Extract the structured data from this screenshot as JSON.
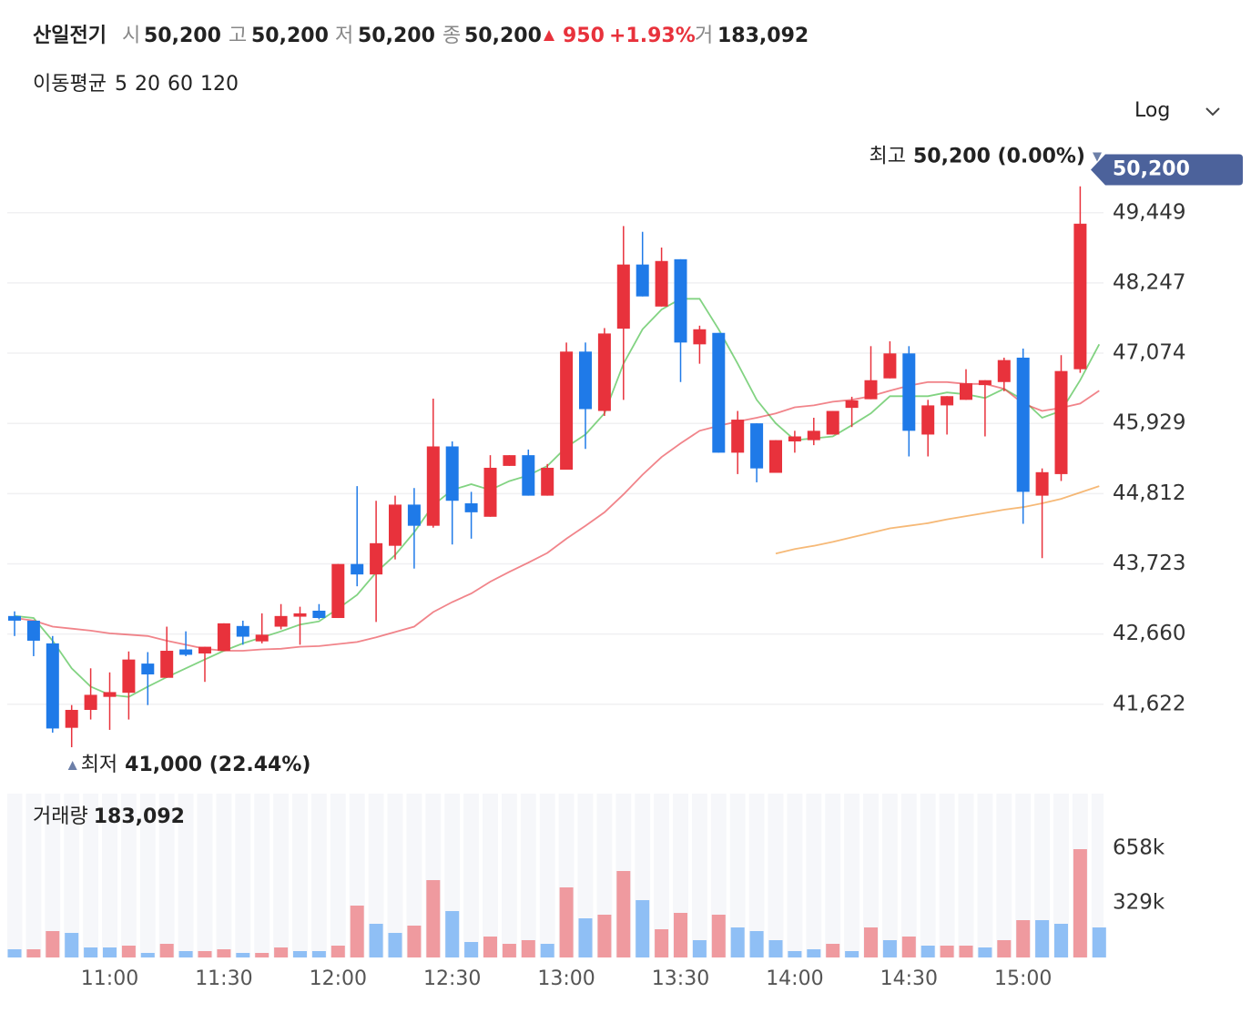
{
  "header": {
    "name": "산일전기",
    "open_label": "시",
    "open": "50,200",
    "high_label": "고",
    "high": "50,200",
    "low_label": "저",
    "low": "50,200",
    "close_label": "종",
    "close": "50,200",
    "change": "950",
    "change_pct": "+1.93%",
    "volume_label": "거",
    "volume": "183,092"
  },
  "ma_legend_label": "이동평균",
  "scale_toggle": "Log",
  "chart_data": [
    {
      "type": "candlestick",
      "log_scale": true,
      "grid": true,
      "up_color": "#e8323c",
      "down_color": "#1f7ae8",
      "open": [
        42930,
        42860,
        42520,
        41280,
        41540,
        41730,
        41790,
        42220,
        42010,
        42430,
        42370,
        42410,
        42780,
        42550,
        42770,
        42920,
        43010,
        42900,
        43720,
        43560,
        44000,
        44640,
        44310,
        45560,
        44660,
        44450,
        45250,
        45420,
        44780,
        45190,
        47100,
        46130,
        47480,
        48560,
        47850,
        48650,
        47220,
        47410,
        45460,
        45930,
        45140,
        45640,
        45660,
        45750,
        46180,
        46320,
        46660,
        47070,
        45750,
        46220,
        46310,
        46550,
        46600,
        47000,
        44780,
        45120,
        46810,
        50200
      ],
      "high": [
        43000,
        42860,
        42630,
        41610,
        42150,
        42090,
        42400,
        42390,
        42770,
        42700,
        42470,
        42820,
        42860,
        42970,
        43110,
        43070,
        43110,
        43720,
        44930,
        44700,
        44780,
        44900,
        46330,
        45640,
        44840,
        45420,
        45420,
        45510,
        45280,
        47250,
        47250,
        47490,
        49220,
        49120,
        48850,
        48650,
        47530,
        47410,
        46130,
        45930,
        45660,
        45810,
        46020,
        46130,
        46360,
        47190,
        47270,
        47190,
        46310,
        46370,
        46810,
        46630,
        47000,
        47150,
        45210,
        47040,
        49910,
        50200
      ],
      "low": [
        42630,
        42330,
        41210,
        41000,
        41400,
        41250,
        41400,
        41610,
        42010,
        42330,
        41950,
        42410,
        42500,
        42520,
        42730,
        42500,
        42880,
        42900,
        43380,
        42840,
        43790,
        43650,
        44280,
        44020,
        44110,
        44450,
        45250,
        44780,
        44780,
        45190,
        45520,
        46050,
        46310,
        48020,
        47850,
        46600,
        46900,
        45460,
        45120,
        44990,
        45140,
        45460,
        45580,
        45750,
        45870,
        46320,
        46660,
        45400,
        45400,
        45750,
        46310,
        45720,
        46450,
        44340,
        43810,
        45010,
        46750,
        50200
      ],
      "close": [
        42860,
        42560,
        41270,
        41540,
        41760,
        41800,
        42280,
        42060,
        42410,
        42350,
        42470,
        42820,
        42620,
        42650,
        42930,
        42970,
        42900,
        43720,
        43560,
        44040,
        44640,
        44310,
        45560,
        44700,
        44520,
        45220,
        45420,
        44780,
        45220,
        47100,
        46160,
        47400,
        48560,
        48020,
        48620,
        47250,
        47470,
        45460,
        45990,
        45210,
        45660,
        45720,
        45810,
        46130,
        46300,
        46630,
        47070,
        45810,
        46220,
        46370,
        46580,
        46630,
        46960,
        44840,
        45150,
        46780,
        49260,
        50200
      ],
      "series": [
        {
          "name": "5",
          "color": "#2fb52f",
          "values": [
            42930,
            42900,
            42560,
            42150,
            41880,
            41760,
            41730,
            41880,
            42020,
            42150,
            42280,
            42410,
            42520,
            42610,
            42700,
            42800,
            42850,
            43040,
            43250,
            43590,
            43860,
            44210,
            44630,
            44870,
            44960,
            44870,
            45010,
            45100,
            45250,
            45550,
            45750,
            46090,
            46900,
            47470,
            47800,
            47980,
            47980,
            47470,
            46900,
            46310,
            45930,
            45660,
            45690,
            45720,
            45900,
            46090,
            46370,
            46370,
            46370,
            46430,
            46400,
            46340,
            46490,
            46310,
            46020,
            46130,
            46630,
            47220
          ]
        },
        {
          "name": "20",
          "color": "#e8323c",
          "values": [
            42900,
            42860,
            42770,
            42740,
            42710,
            42670,
            42650,
            42630,
            42560,
            42500,
            42440,
            42410,
            42410,
            42430,
            42440,
            42470,
            42480,
            42510,
            42540,
            42610,
            42690,
            42770,
            42990,
            43140,
            43270,
            43450,
            43600,
            43740,
            43890,
            44110,
            44310,
            44520,
            44800,
            45110,
            45390,
            45610,
            45810,
            45890,
            45960,
            46020,
            46090,
            46190,
            46220,
            46280,
            46310,
            46370,
            46460,
            46540,
            46600,
            46600,
            46570,
            46570,
            46490,
            46250,
            46130,
            46180,
            46250,
            46460
          ]
        },
        {
          "name": "60",
          "color": "#f08a1c",
          "values": [
            null,
            null,
            null,
            null,
            null,
            null,
            null,
            null,
            null,
            null,
            null,
            null,
            null,
            null,
            null,
            null,
            null,
            null,
            null,
            null,
            null,
            null,
            null,
            null,
            null,
            null,
            null,
            null,
            null,
            null,
            null,
            null,
            null,
            null,
            null,
            null,
            null,
            null,
            null,
            null,
            43880,
            43950,
            44000,
            44060,
            44130,
            44200,
            44270,
            44310,
            44350,
            44410,
            44460,
            44510,
            44560,
            44600,
            44660,
            44730,
            44830,
            44930
          ]
        },
        {
          "name": "120",
          "color": "#8a3ee0",
          "values": [
            null,
            null,
            null,
            null,
            null,
            null,
            null,
            null,
            null,
            null,
            null,
            null,
            null,
            null,
            null,
            null,
            null,
            null,
            null,
            null,
            null,
            null,
            null,
            null,
            null,
            null,
            null,
            null,
            null,
            null,
            null,
            null,
            null,
            null,
            null,
            null,
            null,
            null,
            null,
            null,
            null,
            null,
            null,
            null,
            null,
            null,
            null,
            null,
            null,
            null,
            null,
            null,
            null,
            null,
            null,
            null,
            null,
            null
          ]
        }
      ],
      "ylim": [
        40700,
        51000
      ],
      "yticks": [
        {
          "value": 49449,
          "label": "49,449"
        },
        {
          "value": 48247,
          "label": "48,247"
        },
        {
          "value": 47074,
          "label": "47,074"
        },
        {
          "value": 45929,
          "label": "45,929"
        },
        {
          "value": 44812,
          "label": "44,812"
        },
        {
          "value": 43723,
          "label": "43,723"
        },
        {
          "value": 42660,
          "label": "42,660"
        },
        {
          "value": 41622,
          "label": "41,622"
        }
      ],
      "current_price": {
        "value": 50200,
        "label": "50,200"
      },
      "max_label": "최고",
      "max_text": "50,200 (0.00%)",
      "min_label": "최저",
      "min_text": "41,000 (22.44%)"
    },
    {
      "type": "bar",
      "title": "거래량",
      "title_value": "183,092",
      "categories": [
        null,
        null,
        null,
        null,
        null,
        "11:00",
        null,
        null,
        null,
        null,
        null,
        "11:30",
        null,
        null,
        null,
        null,
        null,
        "12:00",
        null,
        null,
        null,
        null,
        null,
        "12:30",
        null,
        null,
        null,
        null,
        null,
        "13:00",
        null,
        null,
        null,
        null,
        null,
        "13:30",
        null,
        null,
        null,
        null,
        null,
        "14:00",
        null,
        null,
        null,
        null,
        null,
        "14:30",
        null,
        null,
        null,
        null,
        null,
        "15:00",
        null,
        null,
        null,
        null
      ],
      "values": [
        49350,
        49350,
        159000,
        148000,
        60300,
        60300,
        71300,
        27400,
        82200,
        38400,
        38400,
        49350,
        27400,
        27400,
        60300,
        38400,
        38400,
        71300,
        312500,
        202900,
        148000,
        191900,
        466000,
        279600,
        93200,
        126100,
        82200,
        104200,
        82200,
        422200,
        235800,
        257700,
        520900,
        345400,
        170000,
        268700,
        104200,
        257700,
        180900,
        159000,
        104200,
        38400,
        49350,
        82200,
        38400,
        180900,
        104200,
        126100,
        71300,
        71300,
        71300,
        60300,
        104200,
        224800,
        224800,
        202900,
        652500,
        180900
      ],
      "colors": [
        "#8fbff5",
        "#ef9a9f",
        "#ef9a9f",
        "#8fbff5",
        "#8fbff5",
        "#8fbff5",
        "#ef9a9f",
        "#8fbff5",
        "#ef9a9f",
        "#8fbff5",
        "#ef9a9f",
        "#ef9a9f",
        "#8fbff5",
        "#ef9a9f",
        "#ef9a9f",
        "#8fbff5",
        "#8fbff5",
        "#ef9a9f",
        "#ef9a9f",
        "#8fbff5",
        "#8fbff5",
        "#ef9a9f",
        "#ef9a9f",
        "#8fbff5",
        "#8fbff5",
        "#ef9a9f",
        "#ef9a9f",
        "#ef9a9f",
        "#8fbff5",
        "#ef9a9f",
        "#8fbff5",
        "#ef9a9f",
        "#ef9a9f",
        "#8fbff5",
        "#ef9a9f",
        "#ef9a9f",
        "#8fbff5",
        "#ef9a9f",
        "#8fbff5",
        "#8fbff5",
        "#8fbff5",
        "#8fbff5",
        "#8fbff5",
        "#ef9a9f",
        "#8fbff5",
        "#ef9a9f",
        "#8fbff5",
        "#ef9a9f",
        "#8fbff5",
        "#ef9a9f",
        "#ef9a9f",
        "#8fbff5",
        "#ef9a9f",
        "#ef9a9f",
        "#8fbff5",
        "#8fbff5",
        "#ef9a9f",
        "#8fbff5"
      ],
      "ylim": [
        0,
        987000
      ],
      "yticks": [
        {
          "value": 658000,
          "label": "658k"
        },
        {
          "value": 329000,
          "label": "329k"
        }
      ]
    }
  ]
}
